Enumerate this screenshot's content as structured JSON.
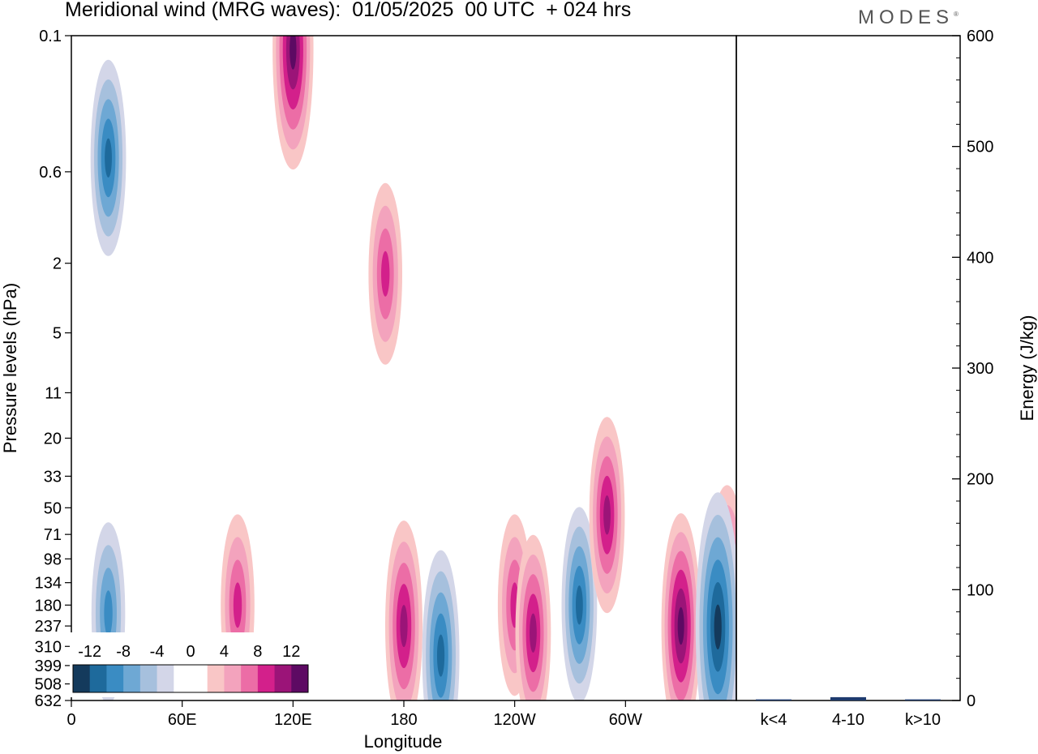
{
  "title": "Meridional wind (MRG waves):  01/05/2025  00 UTC  + 024 hrs",
  "brand": "MODES",
  "chart_data": [
    {
      "type": "heatmap",
      "title": "Meridional wind (MRG waves):  01/05/2025  00 UTC  + 024 hrs",
      "xlabel": "Longitude",
      "ylabel": "Pressure levels (hPa)",
      "x_ticks": [
        "0",
        "60E",
        "120E",
        "180",
        "120W",
        "60W"
      ],
      "y_ticks": [
        "0.1",
        "0.6",
        "2",
        "5",
        "11",
        "20",
        "33",
        "50",
        "71",
        "98",
        "134",
        "180",
        "237",
        "310",
        "399",
        "508",
        "632"
      ],
      "colorbar_labels": [
        "-12",
        "-8",
        "-4",
        "0",
        "4",
        "8",
        "12"
      ],
      "colors": [
        "#143a5c",
        "#1e6a9c",
        "#3a8cc3",
        "#6ea8d4",
        "#a6c0dd",
        "#d3d6e8",
        "#ffffff",
        "#ffffff",
        "#f9c6c6",
        "#f3a3bd",
        "#ec6da6",
        "#d3208b",
        "#9b1478",
        "#5d0a63"
      ],
      "features": [
        {
          "lon": 90,
          "p": 180,
          "v": 8
        },
        {
          "lon": 180,
          "p": 237,
          "v": 10
        },
        {
          "lon": 240,
          "p": 180,
          "v": 8
        },
        {
          "lon": 250,
          "p": 260,
          "v": 9
        },
        {
          "lon": 355,
          "p": 180,
          "v": 12
        },
        {
          "lon": 330,
          "p": 237,
          "v": 11
        },
        {
          "lon": 20,
          "p": 200,
          "v": -8
        },
        {
          "lon": 200,
          "p": 350,
          "v": -10
        },
        {
          "lon": 275,
          "p": 180,
          "v": -9
        },
        {
          "lon": 350,
          "p": 240,
          "v": -14
        },
        {
          "lon": 120,
          "p": 0.12,
          "v": 12
        },
        {
          "lon": 20,
          "p": 0.5,
          "v": -9
        },
        {
          "lon": 170,
          "p": 2.3,
          "v": 8
        },
        {
          "lon": 290,
          "p": 55,
          "v": 9
        }
      ]
    },
    {
      "type": "bar",
      "categories": [
        "k<4",
        "4-10",
        "k>10"
      ],
      "values": [
        1,
        3,
        1
      ],
      "ylabel": "Energy (J/kg)",
      "ylim": [
        0,
        600
      ],
      "y_ticks": [
        "0",
        "100",
        "200",
        "300",
        "400",
        "500",
        "600"
      ],
      "bar_color": "#1e3b6e"
    }
  ]
}
